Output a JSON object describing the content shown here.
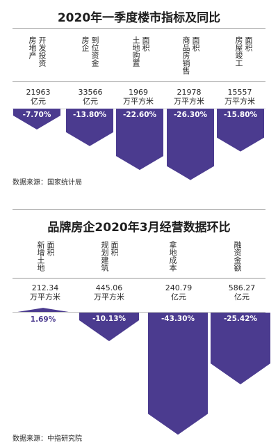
{
  "colors": {
    "bar": "#4b3b8f",
    "bar_label": "#ffffff",
    "positive_label": "#4b3b8f"
  },
  "chart_data": [
    {
      "type": "bar",
      "title": "2020年一季度楼市指标及同比",
      "categories": [
        "房地产开发投资",
        "房企到位资金",
        "土地购置面积",
        "商品房销售面积",
        "房屋竣工面积"
      ],
      "categories_lines": [
        [
          "房地产",
          "开发投资"
        ],
        [
          "房企",
          "到位资金"
        ],
        [
          "土地购置",
          "面积"
        ],
        [
          "商品房销售",
          "面积"
        ],
        [
          "房屋竣工",
          "面积"
        ]
      ],
      "volumes": [
        "21963",
        "33566",
        "1969",
        "21978",
        "15557"
      ],
      "volume_units": [
        "亿元",
        "亿元",
        "万平方米",
        "万平方米",
        "万平方米"
      ],
      "values": [
        -7.7,
        -13.8,
        -22.6,
        -26.3,
        -15.8
      ],
      "labels": [
        "-7.70%",
        "-13.80%",
        "-22.60%",
        "-26.30%",
        "-15.80%"
      ],
      "source": "数据来源：国家统计局"
    },
    {
      "type": "bar",
      "title": "品牌房企2020年3月经营数据环比",
      "categories": [
        "新增土地面积",
        "规划建筑面积",
        "拿地成本",
        "融资金额"
      ],
      "categories_lines": [
        [
          "新增土地",
          "面积"
        ],
        [
          "规划建筑",
          "面积"
        ],
        [
          "拿地成本",
          ""
        ],
        [
          "融资金额",
          ""
        ]
      ],
      "volumes": [
        "212.34",
        "445.06",
        "240.79",
        "586.27"
      ],
      "volume_units": [
        "万平方米",
        "万平方米",
        "亿元",
        "亿元"
      ],
      "values": [
        1.69,
        -10.13,
        -43.3,
        -25.42
      ],
      "labels": [
        "1.69%",
        "-10.13%",
        "-43.30%",
        "-25.42%"
      ],
      "source": "数据来源：中指研究院"
    }
  ]
}
